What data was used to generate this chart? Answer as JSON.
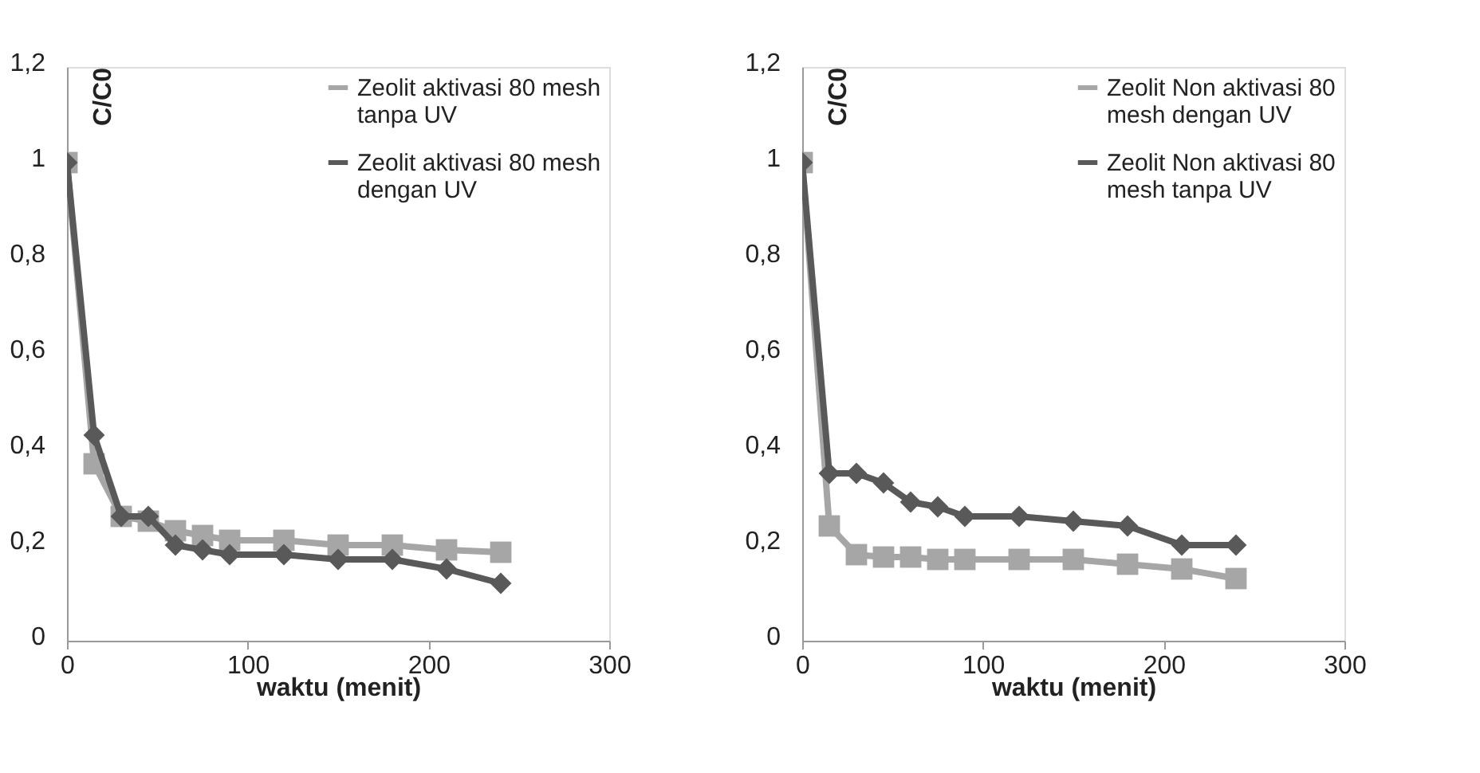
{
  "chart_data": [
    {
      "type": "line",
      "xlabel": "waktu (menit)",
      "ylabel": "C/C0",
      "xlim": [
        0,
        300
      ],
      "xticks": [
        0,
        100,
        200,
        300
      ],
      "ylim": [
        0,
        1.2
      ],
      "yticks": [
        {
          "value": 0,
          "label": "0"
        },
        {
          "value": 0.2,
          "label": "0,2"
        },
        {
          "value": 0.4,
          "label": "0,4"
        },
        {
          "value": 0.6,
          "label": "0,6"
        },
        {
          "value": 0.8,
          "label": "0,8"
        },
        {
          "value": 1,
          "label": "1"
        },
        {
          "value": 1.2,
          "label": "1,2"
        }
      ],
      "grid": false,
      "legend": "top right",
      "line_style": "solid",
      "x": [
        0,
        15,
        30,
        45,
        60,
        75,
        90,
        120,
        150,
        180,
        210,
        240
      ],
      "series": [
        {
          "name": "Zeolit aktivasi 80 mesh tanpa UV",
          "color": "#a6a6a6",
          "marker": "square",
          "values": [
            1,
            0.37,
            0.26,
            0.25,
            0.23,
            0.22,
            0.21,
            0.21,
            0.2,
            0.2,
            0.19,
            0.185
          ]
        },
        {
          "name": "Zeolit aktivasi 80 mesh dengan UV",
          "color": "#595959",
          "marker": "diamond",
          "values": [
            1,
            0.43,
            0.26,
            0.26,
            0.2,
            0.19,
            0.18,
            0.18,
            0.17,
            0.17,
            0.15,
            0.12
          ]
        }
      ]
    },
    {
      "type": "line",
      "xlabel": "waktu (menit)",
      "ylabel": "C/C0",
      "xlim": [
        0,
        300
      ],
      "xticks": [
        0,
        100,
        200,
        300
      ],
      "ylim": [
        0,
        1.2
      ],
      "yticks": [
        {
          "value": 0,
          "label": "0"
        },
        {
          "value": 0.2,
          "label": "0,2"
        },
        {
          "value": 0.4,
          "label": "0,4"
        },
        {
          "value": 0.6,
          "label": "0,6"
        },
        {
          "value": 0.8,
          "label": "0,8"
        },
        {
          "value": 1,
          "label": "1"
        },
        {
          "value": 1.2,
          "label": "1,2"
        }
      ],
      "grid": false,
      "legend": "top right",
      "line_style": "solid",
      "x": [
        0,
        15,
        30,
        45,
        60,
        75,
        90,
        120,
        150,
        180,
        210,
        240
      ],
      "series": [
        {
          "name": "Zeolit Non aktivasi 80 mesh dengan UV",
          "color": "#a6a6a6",
          "marker": "square",
          "values": [
            1,
            0.24,
            0.18,
            0.175,
            0.175,
            0.17,
            0.17,
            0.17,
            0.17,
            0.16,
            0.15,
            0.13
          ]
        },
        {
          "name": "Zeolit Non aktivasi 80 mesh tanpa UV",
          "color": "#595959",
          "marker": "diamond",
          "values": [
            1,
            0.35,
            0.35,
            0.33,
            0.29,
            0.28,
            0.26,
            0.26,
            0.25,
            0.24,
            0.2,
            0.2
          ]
        }
      ]
    }
  ]
}
